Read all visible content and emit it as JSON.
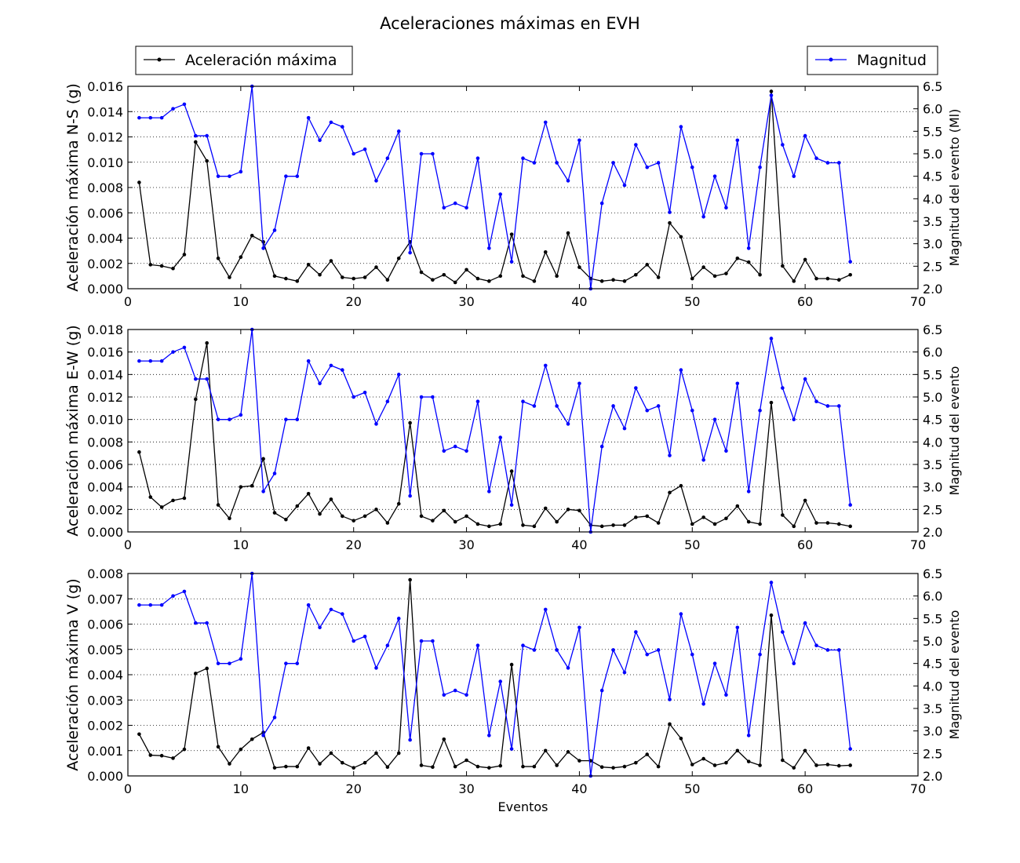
{
  "figure": {
    "title": "Aceleraciones máximas en EVH",
    "xlabel": "Eventos"
  },
  "legend": {
    "left_label": "Aceleración máxima",
    "right_label": "Magnitud"
  },
  "colors": {
    "acceleration": "#000000",
    "magnitude": "#0000ff",
    "grid": "#000000"
  },
  "chart_data": [
    {
      "type": "line",
      "title": "",
      "xlabel": "",
      "ylabel": "Aceleración máxima N-S (g)",
      "y2label": "Magnitud del evento (Ml)",
      "xlim": [
        0,
        70
      ],
      "ylim": [
        0,
        0.016
      ],
      "y2lim": [
        2.0,
        6.5
      ],
      "xticks": [
        0,
        10,
        20,
        30,
        40,
        50,
        60,
        70
      ],
      "yticks": [
        0.0,
        0.002,
        0.004,
        0.006,
        0.008,
        0.01,
        0.012,
        0.014,
        0.016
      ],
      "y2ticks": [
        2.0,
        2.5,
        3.0,
        3.5,
        4.0,
        4.5,
        5.0,
        5.5,
        6.0,
        6.5
      ],
      "ydecimals": 3,
      "grid": "y-dotted",
      "x": [
        1,
        2,
        3,
        4,
        5,
        6,
        7,
        8,
        9,
        10,
        11,
        12,
        13,
        14,
        15,
        16,
        17,
        18,
        19,
        20,
        21,
        22,
        23,
        24,
        25,
        26,
        27,
        28,
        29,
        30,
        31,
        32,
        33,
        34,
        35,
        36,
        37,
        38,
        39,
        40,
        41,
        42,
        43,
        44,
        45,
        46,
        47,
        48,
        49,
        50,
        51,
        52,
        53,
        54,
        55,
        56,
        57,
        58,
        59,
        60,
        61,
        62,
        63,
        64
      ],
      "series": [
        {
          "name": "Aceleración máxima",
          "axis": "left",
          "values": [
            0.0084,
            0.0019,
            0.0018,
            0.0016,
            0.0027,
            0.0116,
            0.0101,
            0.0024,
            0.0009,
            0.0025,
            0.0042,
            0.0037,
            0.001,
            0.0008,
            0.0006,
            0.0019,
            0.0011,
            0.0022,
            0.0009,
            0.0008,
            0.0009,
            0.0017,
            0.0007,
            0.0024,
            0.0037,
            0.0013,
            0.0007,
            0.0011,
            0.0005,
            0.0015,
            0.0008,
            0.0006,
            0.001,
            0.0043,
            0.001,
            0.0006,
            0.0029,
            0.001,
            0.0044,
            0.0017,
            0.0008,
            0.0006,
            0.0007,
            0.0006,
            0.0011,
            0.0019,
            0.0009,
            0.0052,
            0.0041,
            0.0008,
            0.0017,
            0.001,
            0.0012,
            0.0024,
            0.0021,
            0.0011,
            0.0156,
            0.0018,
            0.0006,
            0.0023,
            0.0008,
            0.0008,
            0.0007,
            0.0011
          ]
        },
        {
          "name": "Magnitud",
          "axis": "right",
          "values": [
            5.8,
            5.8,
            5.8,
            6.0,
            6.1,
            5.4,
            5.4,
            4.5,
            4.5,
            4.6,
            6.5,
            2.9,
            3.3,
            4.5,
            4.5,
            5.8,
            5.3,
            5.7,
            5.6,
            5.0,
            5.1,
            4.4,
            4.9,
            5.5,
            2.8,
            5.0,
            5.0,
            3.8,
            3.9,
            3.8,
            4.9,
            2.9,
            4.1,
            2.6,
            4.9,
            4.8,
            5.7,
            4.8,
            4.4,
            5.3,
            2.0,
            3.9,
            4.8,
            4.3,
            5.2,
            4.7,
            4.8,
            3.7,
            5.6,
            4.7,
            3.6,
            4.5,
            3.8,
            5.3,
            2.9,
            4.7,
            6.3,
            5.2,
            4.5,
            5.4,
            4.9,
            4.8,
            4.8,
            2.6
          ]
        }
      ]
    },
    {
      "type": "line",
      "title": "",
      "xlabel": "",
      "ylabel": "Aceleración máxima E-W (g)",
      "y2label": "Magnitud del evento",
      "xlim": [
        0,
        70
      ],
      "ylim": [
        0,
        0.018
      ],
      "y2lim": [
        2.0,
        6.5
      ],
      "xticks": [
        0,
        10,
        20,
        30,
        40,
        50,
        60,
        70
      ],
      "yticks": [
        0.0,
        0.002,
        0.004,
        0.006,
        0.008,
        0.01,
        0.012,
        0.014,
        0.016,
        0.018
      ],
      "y2ticks": [
        2.0,
        2.5,
        3.0,
        3.5,
        4.0,
        4.5,
        5.0,
        5.5,
        6.0,
        6.5
      ],
      "ydecimals": 3,
      "grid": "y-dotted",
      "x": [
        1,
        2,
        3,
        4,
        5,
        6,
        7,
        8,
        9,
        10,
        11,
        12,
        13,
        14,
        15,
        16,
        17,
        18,
        19,
        20,
        21,
        22,
        23,
        24,
        25,
        26,
        27,
        28,
        29,
        30,
        31,
        32,
        33,
        34,
        35,
        36,
        37,
        38,
        39,
        40,
        41,
        42,
        43,
        44,
        45,
        46,
        47,
        48,
        49,
        50,
        51,
        52,
        53,
        54,
        55,
        56,
        57,
        58,
        59,
        60,
        61,
        62,
        63,
        64
      ],
      "series": [
        {
          "name": "Aceleración máxima",
          "axis": "left",
          "values": [
            0.0071,
            0.0031,
            0.0022,
            0.0028,
            0.003,
            0.0118,
            0.0168,
            0.0024,
            0.0012,
            0.004,
            0.0041,
            0.0065,
            0.0017,
            0.0011,
            0.0023,
            0.0034,
            0.0016,
            0.0029,
            0.0014,
            0.001,
            0.0014,
            0.002,
            0.0008,
            0.0025,
            0.0097,
            0.0014,
            0.001,
            0.0019,
            0.0009,
            0.0014,
            0.0007,
            0.0005,
            0.0007,
            0.0054,
            0.0006,
            0.0005,
            0.0021,
            0.0009,
            0.002,
            0.0019,
            0.0006,
            0.0005,
            0.0006,
            0.0006,
            0.0013,
            0.0014,
            0.0008,
            0.0035,
            0.0041,
            0.0007,
            0.0013,
            0.0007,
            0.0012,
            0.0023,
            0.0009,
            0.0007,
            0.0115,
            0.0015,
            0.0005,
            0.0028,
            0.0008,
            0.0008,
            0.0007,
            0.0005
          ]
        },
        {
          "name": "Magnitud",
          "axis": "right",
          "values": [
            5.8,
            5.8,
            5.8,
            6.0,
            6.1,
            5.4,
            5.4,
            4.5,
            4.5,
            4.6,
            6.5,
            2.9,
            3.3,
            4.5,
            4.5,
            5.8,
            5.3,
            5.7,
            5.6,
            5.0,
            5.1,
            4.4,
            4.9,
            5.5,
            2.8,
            5.0,
            5.0,
            3.8,
            3.9,
            3.8,
            4.9,
            2.9,
            4.1,
            2.6,
            4.9,
            4.8,
            5.7,
            4.8,
            4.4,
            5.3,
            2.0,
            3.9,
            4.8,
            4.3,
            5.2,
            4.7,
            4.8,
            3.7,
            5.6,
            4.7,
            3.6,
            4.5,
            3.8,
            5.3,
            2.9,
            4.7,
            6.3,
            5.2,
            4.5,
            5.4,
            4.9,
            4.8,
            4.8,
            2.6
          ]
        }
      ]
    },
    {
      "type": "line",
      "title": "",
      "xlabel": "Eventos",
      "ylabel": "Aceleración máxima V (g)",
      "y2label": "Magnitud del evento",
      "xlim": [
        0,
        70
      ],
      "ylim": [
        0,
        0.008
      ],
      "y2lim": [
        2.0,
        6.5
      ],
      "xticks": [
        0,
        10,
        20,
        30,
        40,
        50,
        60,
        70
      ],
      "yticks": [
        0.0,
        0.001,
        0.002,
        0.003,
        0.004,
        0.005,
        0.006,
        0.007,
        0.008
      ],
      "y2ticks": [
        2.0,
        2.5,
        3.0,
        3.5,
        4.0,
        4.5,
        5.0,
        5.5,
        6.0,
        6.5
      ],
      "ydecimals": 3,
      "grid": "y-dotted",
      "x": [
        1,
        2,
        3,
        4,
        5,
        6,
        7,
        8,
        9,
        10,
        11,
        12,
        13,
        14,
        15,
        16,
        17,
        18,
        19,
        20,
        21,
        22,
        23,
        24,
        25,
        26,
        27,
        28,
        29,
        30,
        31,
        32,
        33,
        34,
        35,
        36,
        37,
        38,
        39,
        40,
        41,
        42,
        43,
        44,
        45,
        46,
        47,
        48,
        49,
        50,
        51,
        52,
        53,
        54,
        55,
        56,
        57,
        58,
        59,
        60,
        61,
        62,
        63,
        64
      ],
      "series": [
        {
          "name": "Aceleración máxima",
          "axis": "left",
          "values": [
            0.00165,
            0.00082,
            0.0008,
            0.0007,
            0.00105,
            0.00405,
            0.00425,
            0.00115,
            0.00048,
            0.00105,
            0.00145,
            0.00172,
            0.00032,
            0.00037,
            0.00037,
            0.0011,
            0.00048,
            0.0009,
            0.00052,
            0.00032,
            0.00052,
            0.0009,
            0.00035,
            0.0009,
            0.00775,
            0.00042,
            0.00035,
            0.00145,
            0.00037,
            0.00062,
            0.00037,
            0.00032,
            0.0004,
            0.0044,
            0.00037,
            0.00037,
            0.001,
            0.00042,
            0.00095,
            0.0006,
            0.0006,
            0.00035,
            0.00032,
            0.00037,
            0.00052,
            0.00085,
            0.00037,
            0.00205,
            0.00148,
            0.00045,
            0.00068,
            0.00042,
            0.00052,
            0.001,
            0.00057,
            0.00042,
            0.00635,
            0.00062,
            0.00032,
            0.001,
            0.00042,
            0.00045,
            0.0004,
            0.00042
          ]
        },
        {
          "name": "Magnitud",
          "axis": "right",
          "values": [
            5.8,
            5.8,
            5.8,
            6.0,
            6.1,
            5.4,
            5.4,
            4.5,
            4.5,
            4.6,
            6.5,
            2.9,
            3.3,
            4.5,
            4.5,
            5.8,
            5.3,
            5.7,
            5.6,
            5.0,
            5.1,
            4.4,
            4.9,
            5.5,
            2.8,
            5.0,
            5.0,
            3.8,
            3.9,
            3.8,
            4.9,
            2.9,
            4.1,
            2.6,
            4.9,
            4.8,
            5.7,
            4.8,
            4.4,
            5.3,
            2.0,
            3.9,
            4.8,
            4.3,
            5.2,
            4.7,
            4.8,
            3.7,
            5.6,
            4.7,
            3.6,
            4.5,
            3.8,
            5.3,
            2.9,
            4.7,
            6.3,
            5.2,
            4.5,
            5.4,
            4.9,
            4.8,
            4.8,
            2.6
          ]
        }
      ]
    }
  ]
}
